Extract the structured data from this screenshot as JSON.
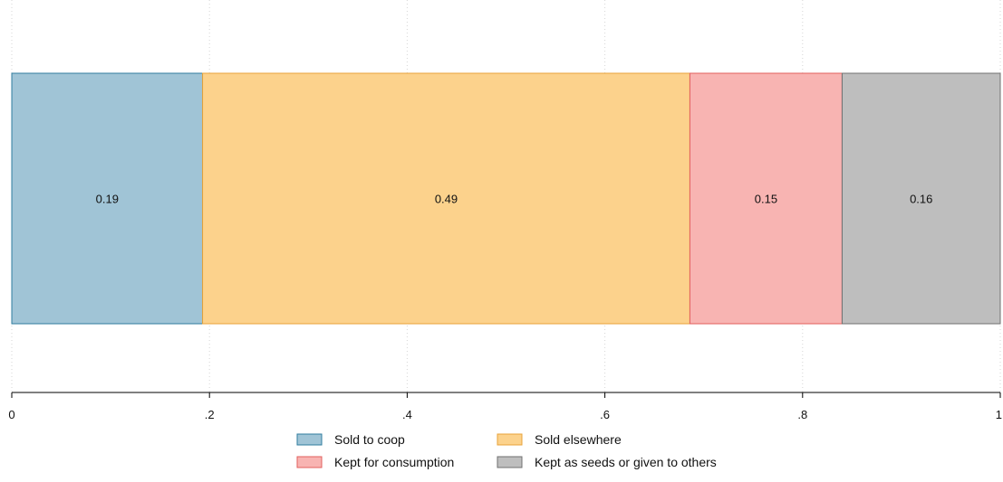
{
  "chart_data": {
    "type": "bar",
    "orientation": "horizontal-stacked",
    "series": [
      {
        "name": "Sold to coop",
        "value": 0.193,
        "label": "0.19",
        "fill": "#a0c4d6",
        "stroke": "#2f7d9f"
      },
      {
        "name": "Sold elsewhere",
        "value": 0.493,
        "label": "0.49",
        "fill": "#fcd28c",
        "stroke": "#e8a33a"
      },
      {
        "name": "Kept for consumption",
        "value": 0.154,
        "label": "0.15",
        "fill": "#f8b4b2",
        "stroke": "#e25f5c"
      },
      {
        "name": "Kept as seeds or given to others",
        "value": 0.16,
        "label": "0.16",
        "fill": "#bebebe",
        "stroke": "#707070"
      }
    ],
    "xlim": [
      0,
      1
    ],
    "xticks": [
      {
        "value": 0,
        "label": "0"
      },
      {
        "value": 0.2,
        "label": ".2"
      },
      {
        "value": 0.4,
        "label": ".4"
      },
      {
        "value": 0.6,
        "label": ".6"
      },
      {
        "value": 0.8,
        "label": ".8"
      },
      {
        "value": 1,
        "label": "1"
      }
    ],
    "title": "",
    "xlabel": "",
    "ylabel": "",
    "grid": "vertical-dotted",
    "legend_position": "bottom"
  }
}
